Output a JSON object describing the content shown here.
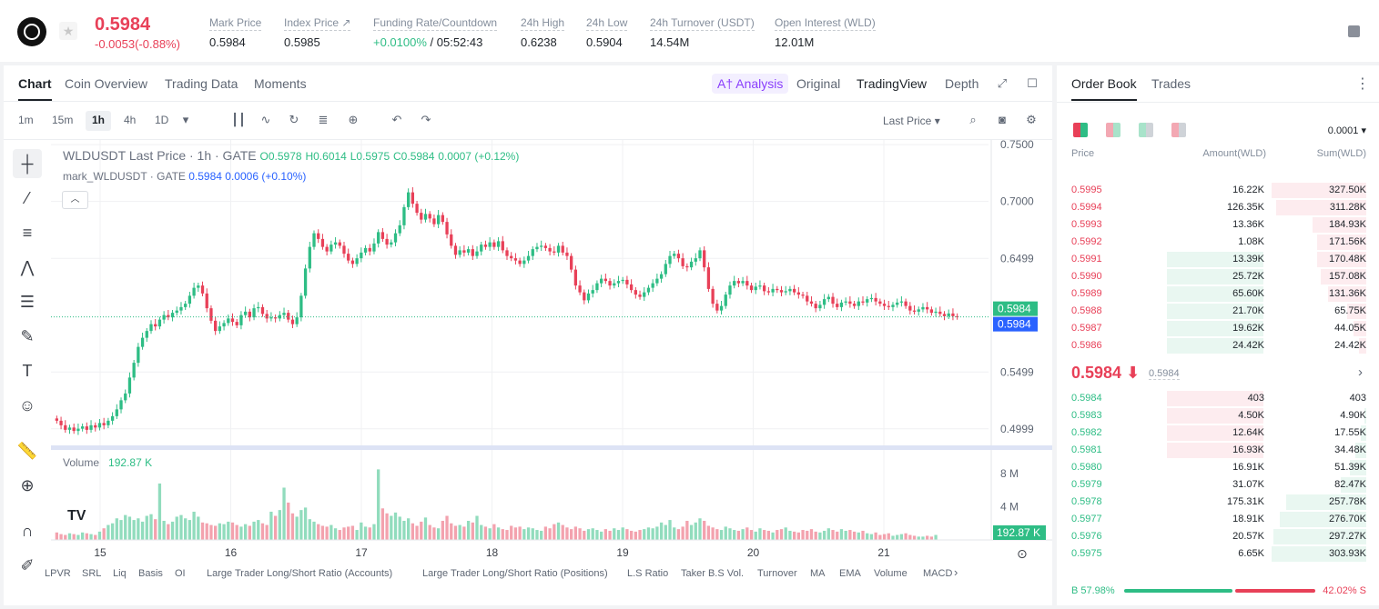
{
  "header": {
    "last_price": "0.5984",
    "change": "-0.0053(-0.88%)",
    "stats": [
      {
        "label": "Mark Price",
        "value": "0.5984"
      },
      {
        "label": "Index Price ↗",
        "value": "0.5985"
      },
      {
        "label": "Funding Rate/Countdown",
        "value_rate": "+0.0100%",
        "value_countdown": " / 05:52:43"
      },
      {
        "label": "24h High",
        "value": "0.6238"
      },
      {
        "label": "24h Low",
        "value": "0.5904"
      },
      {
        "label": "24h Turnover (USDT)",
        "value": "14.54M"
      },
      {
        "label": "Open Interest (WLD)",
        "value": "12.01M"
      }
    ]
  },
  "chart_tabs": [
    "Chart",
    "Coin Overview",
    "Trading Data",
    "Moments"
  ],
  "view_tabs": {
    "ai": "A† Analysis",
    "original": "Original",
    "tradingview": "TradingView",
    "depth": "Depth"
  },
  "timeframes": [
    "1m",
    "15m",
    "1h",
    "4h",
    "1D"
  ],
  "price_source": "Last Price ▾",
  "legend": {
    "symbol": "WLDUSDT Last Price · 1h · GATE",
    "o": "O0.5978",
    "h": "H0.6014",
    "l": "L0.5975",
    "c": "C0.5984",
    "chg": "0.0007 (+0.12%)",
    "mark_label": "mark_WLDUSDT · GATE",
    "mark_val": "0.5984",
    "mark_chg": "0.0006 (+0.10%)"
  },
  "volume_legend": {
    "label": "Volume",
    "value": "192.87 K"
  },
  "indicators": [
    "LPVR",
    "SRL",
    "Liq",
    "Basis",
    "OI",
    "Large Trader Long/Short Ratio (Accounts)",
    "Large Trader Long/Short Ratio (Positions)",
    "L.S Ratio",
    "Taker B.S Vol.",
    "Turnover",
    "MA",
    "EMA",
    "Volume",
    "MACD"
  ],
  "chart_data": {
    "type": "candlestick",
    "x_ticks": [
      "15",
      "16",
      "17",
      "18",
      "19",
      "20",
      "21"
    ],
    "price_ticks": [
      "0.7500",
      "0.7000",
      "0.6499",
      "0.5499",
      "0.4999"
    ],
    "volume_ticks": [
      "8 M",
      "4 M"
    ],
    "last_price_label": "0.5984",
    "mark_price_label": "0.5984",
    "volume_label": "192.87 K",
    "ylim": [
      0.4853,
      0.7541
    ],
    "colors": {
      "up": "#2ebd85",
      "down": "#e84058"
    },
    "closes": [
      0.507,
      0.503,
      0.499,
      0.501,
      0.498,
      0.5,
      0.502,
      0.499,
      0.503,
      0.501,
      0.505,
      0.503,
      0.507,
      0.511,
      0.517,
      0.525,
      0.531,
      0.545,
      0.558,
      0.572,
      0.58,
      0.586,
      0.592,
      0.59,
      0.596,
      0.6,
      0.598,
      0.602,
      0.604,
      0.607,
      0.61,
      0.617,
      0.624,
      0.626,
      0.619,
      0.606,
      0.595,
      0.586,
      0.59,
      0.593,
      0.597,
      0.594,
      0.591,
      0.6,
      0.603,
      0.598,
      0.606,
      0.607,
      0.601,
      0.597,
      0.598,
      0.597,
      0.6,
      0.602,
      0.596,
      0.592,
      0.598,
      0.617,
      0.641,
      0.66,
      0.672,
      0.667,
      0.66,
      0.656,
      0.662,
      0.664,
      0.661,
      0.654,
      0.648,
      0.645,
      0.65,
      0.655,
      0.659,
      0.656,
      0.663,
      0.673,
      0.667,
      0.662,
      0.664,
      0.672,
      0.679,
      0.695,
      0.708,
      0.698,
      0.69,
      0.684,
      0.689,
      0.685,
      0.68,
      0.688,
      0.682,
      0.671,
      0.661,
      0.653,
      0.657,
      0.655,
      0.658,
      0.652,
      0.656,
      0.662,
      0.66,
      0.664,
      0.66,
      0.665,
      0.657,
      0.652,
      0.65,
      0.648,
      0.645,
      0.648,
      0.652,
      0.658,
      0.66,
      0.661,
      0.659,
      0.656,
      0.655,
      0.661,
      0.655,
      0.652,
      0.64,
      0.626,
      0.62,
      0.613,
      0.619,
      0.622,
      0.628,
      0.632,
      0.63,
      0.626,
      0.628,
      0.63,
      0.631,
      0.627,
      0.622,
      0.618,
      0.616,
      0.62,
      0.624,
      0.628,
      0.632,
      0.636,
      0.645,
      0.652,
      0.654,
      0.65,
      0.643,
      0.642,
      0.647,
      0.65,
      0.657,
      0.642,
      0.623,
      0.61,
      0.604,
      0.608,
      0.618,
      0.626,
      0.63,
      0.628,
      0.63,
      0.626,
      0.622,
      0.625,
      0.626,
      0.621,
      0.62,
      0.623,
      0.622,
      0.62,
      0.621,
      0.623,
      0.62,
      0.618,
      0.617,
      0.612,
      0.61,
      0.606,
      0.609,
      0.614,
      0.616,
      0.61,
      0.607,
      0.611,
      0.612,
      0.61,
      0.608,
      0.612,
      0.611,
      0.614,
      0.615,
      0.612,
      0.61,
      0.608,
      0.607,
      0.609,
      0.611,
      0.612,
      0.608,
      0.604,
      0.603,
      0.605,
      0.607,
      0.605,
      0.602,
      0.603,
      0.601,
      0.599,
      0.6014,
      0.599,
      0.5984
    ],
    "volumes": [
      0.9,
      0.7,
      0.6,
      0.8,
      0.7,
      0.6,
      0.9,
      0.8,
      0.7,
      0.6,
      1.0,
      1.4,
      1.8,
      2.0,
      2.6,
      2.4,
      3.0,
      2.8,
      2.4,
      2.6,
      2.2,
      2.9,
      3.1,
      2.5,
      6.8,
      2.3,
      1.9,
      2.2,
      2.8,
      3.0,
      2.6,
      2.4,
      3.4,
      2.8,
      2.1,
      2.0,
      1.8,
      1.7,
      2.0,
      1.9,
      2.2,
      2.1,
      1.8,
      1.6,
      1.9,
      1.7,
      2.2,
      2.4,
      2.0,
      1.8,
      3.4,
      2.9,
      3.6,
      6.3,
      4.5,
      3.2,
      2.8,
      3.6,
      3.9,
      2.5,
      2.2,
      1.9,
      1.7,
      1.6,
      1.8,
      1.4,
      1.2,
      1.5,
      1.6,
      1.7,
      1.2,
      2.1,
      1.6,
      1.5,
      1.9,
      8.5,
      3.8,
      3.2,
      2.9,
      3.3,
      2.8,
      2.3,
      2.6,
      2.0,
      1.7,
      2.2,
      2.7,
      1.8,
      1.5,
      1.4,
      2.3,
      2.9,
      2.0,
      1.7,
      1.8,
      1.6,
      2.3,
      2.1,
      2.9,
      1.8,
      1.6,
      1.4,
      1.9,
      1.5,
      1.3,
      1.2,
      1.7,
      1.5,
      1.6,
      1.3,
      1.5,
      1.4,
      1.2,
      1.1,
      1.6,
      1.4,
      1.9,
      2.1,
      1.8,
      1.5,
      1.3,
      1.6,
      1.4,
      1.1,
      1.3,
      1.4,
      1.2,
      1.0,
      1.3,
      1.1,
      1.4,
      1.2,
      1.5,
      1.3,
      1.1,
      1.0,
      1.2,
      1.3,
      1.5,
      1.4,
      1.6,
      2.1,
      1.8,
      2.4,
      1.5,
      1.3,
      1.6,
      2.3,
      1.8,
      2.1,
      2.6,
      2.3,
      1.7,
      1.5,
      1.3,
      1.2,
      1.6,
      1.4,
      1.2,
      1.1,
      1.3,
      1.5,
      1.2,
      1.0,
      1.4,
      1.2,
      1.1,
      0.9,
      1.2,
      1.3,
      1.5,
      1.1,
      1.0,
      0.9,
      1.2,
      1.1,
      1.3,
      1.0,
      0.9,
      1.1,
      1.4,
      1.2,
      1.0,
      1.3,
      1.1,
      1.2,
      1.0,
      0.9,
      1.1,
      0.8,
      0.7,
      0.9,
      0.6,
      0.7,
      0.8,
      0.5,
      0.6,
      0.7,
      0.8,
      0.6,
      0.5,
      0.4,
      0.4,
      0.5,
      0.4,
      0.6
    ]
  },
  "orderbook": {
    "tabs": [
      "Order Book",
      "Trades"
    ],
    "precision": "0.0001 ▾",
    "headers": {
      "price": "Price",
      "amount": "Amount(WLD)",
      "sum": "Sum(WLD)"
    },
    "asks": [
      {
        "price": "0.5995",
        "amount": "16.22K",
        "sum": "327.50K",
        "amt_frac": 0.0,
        "sum_frac": 1.0
      },
      {
        "price": "0.5994",
        "amount": "126.35K",
        "sum": "311.28K",
        "amt_frac": 0.0,
        "sum_frac": 0.95
      },
      {
        "price": "0.5993",
        "amount": "13.36K",
        "sum": "184.93K",
        "amt_frac": 0.0,
        "sum_frac": 0.565
      },
      {
        "price": "0.5992",
        "amount": "1.08K",
        "sum": "171.56K",
        "amt_frac": 0.0,
        "sum_frac": 0.524
      },
      {
        "price": "0.5991",
        "amount": "13.39K",
        "sum": "170.48K",
        "amt_frac": 1.0,
        "sum_frac": 0.52
      },
      {
        "price": "0.5990",
        "amount": "25.72K",
        "sum": "157.08K",
        "amt_frac": 1.0,
        "sum_frac": 0.48
      },
      {
        "price": "0.5989",
        "amount": "65.60K",
        "sum": "131.36K",
        "amt_frac": 1.0,
        "sum_frac": 0.4
      },
      {
        "price": "0.5988",
        "amount": "21.70K",
        "sum": "65.75K",
        "amt_frac": 1.0,
        "sum_frac": 0.2
      },
      {
        "price": "0.5987",
        "amount": "19.62K",
        "sum": "44.05K",
        "amt_frac": 1.0,
        "sum_frac": 0.134
      },
      {
        "price": "0.5986",
        "amount": "24.42K",
        "sum": "24.42K",
        "amt_frac": 1.0,
        "sum_frac": 0.075
      }
    ],
    "mid": {
      "price": "0.5984 ⬇",
      "mark": "0.5984"
    },
    "bids": [
      {
        "price": "0.5984",
        "amount": "403",
        "sum": "403",
        "amt_frac": 1.0,
        "sum_frac": 0.0
      },
      {
        "price": "0.5983",
        "amount": "4.50K",
        "sum": "4.90K",
        "amt_frac": 1.0,
        "sum_frac": 0.016
      },
      {
        "price": "0.5982",
        "amount": "12.64K",
        "sum": "17.55K",
        "amt_frac": 1.0,
        "sum_frac": 0.058
      },
      {
        "price": "0.5981",
        "amount": "16.93K",
        "sum": "34.48K",
        "amt_frac": 1.0,
        "sum_frac": 0.113
      },
      {
        "price": "0.5980",
        "amount": "16.91K",
        "sum": "51.39K",
        "amt_frac": 0.0,
        "sum_frac": 0.17
      },
      {
        "price": "0.5979",
        "amount": "31.07K",
        "sum": "82.47K",
        "amt_frac": 0.0,
        "sum_frac": 0.27
      },
      {
        "price": "0.5978",
        "amount": "175.31K",
        "sum": "257.78K",
        "amt_frac": 0.0,
        "sum_frac": 0.85
      },
      {
        "price": "0.5977",
        "amount": "18.91K",
        "sum": "276.70K",
        "amt_frac": 0.0,
        "sum_frac": 0.91
      },
      {
        "price": "0.5976",
        "amount": "20.57K",
        "sum": "297.27K",
        "amt_frac": 0.0,
        "sum_frac": 0.98
      },
      {
        "price": "0.5975",
        "amount": "6.65K",
        "sum": "303.93K",
        "amt_frac": 0.0,
        "sum_frac": 1.0
      }
    ],
    "buy_ratio": "B 57.98%",
    "sell_ratio": "42.02% S",
    "buy_frac": 0.5798
  }
}
